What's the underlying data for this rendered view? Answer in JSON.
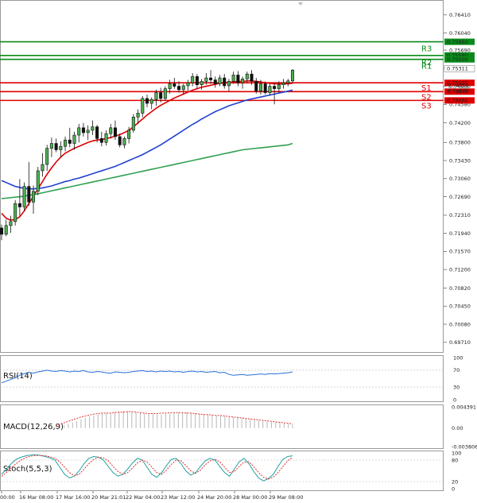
{
  "chart_data": [
    {
      "panel": "price",
      "type": "candlestick",
      "ylim": [
        0.6956,
        0.7665
      ],
      "yticks": [
        "0.76410",
        "0.76040",
        "0.75690",
        "0.75320",
        "0.74950",
        "0.74580",
        "0.74200",
        "0.73800",
        "0.73430",
        "0.73060",
        "0.72690",
        "0.72310",
        "0.71940",
        "0.71570",
        "0.71200",
        "0.70820",
        "0.70450",
        "0.70080",
        "0.69710"
      ],
      "levels": {
        "resistance": [
          {
            "label": "R3",
            "value": 0.7586,
            "text": "0.75860"
          },
          {
            "label": "R2",
            "value": 0.7558,
            "text": "0.75580"
          },
          {
            "label": "R1",
            "value": 0.755,
            "text": "0.75500"
          }
        ],
        "support": [
          {
            "label": "S1",
            "value": 0.7502,
            "text": "0.75020"
          },
          {
            "label": "S2",
            "value": 0.7484,
            "text": "0.74840"
          },
          {
            "label": "S3",
            "value": 0.7466,
            "text": "0.74660"
          }
        ],
        "current": {
          "value": 0.75311,
          "text": "0.75311"
        },
        "partial": [
          "0.74959",
          "0.74800"
        ]
      },
      "candles": [
        [
          0.7205,
          0.7212,
          0.718,
          0.7192
        ],
        [
          0.7192,
          0.7222,
          0.7188,
          0.721
        ],
        [
          0.721,
          0.723,
          0.7195,
          0.7218
        ],
        [
          0.7218,
          0.7262,
          0.721,
          0.7255
        ],
        [
          0.7255,
          0.7305,
          0.723,
          0.7248
        ],
        [
          0.7248,
          0.7298,
          0.724,
          0.729
        ],
        [
          0.729,
          0.734,
          0.725,
          0.7258
        ],
        [
          0.7258,
          0.7292,
          0.7234,
          0.728
        ],
        [
          0.728,
          0.733,
          0.7272,
          0.7322
        ],
        [
          0.7322,
          0.7358,
          0.731,
          0.7335
        ],
        [
          0.7335,
          0.7375,
          0.7322,
          0.7368
        ],
        [
          0.7368,
          0.739,
          0.735,
          0.7378
        ],
        [
          0.7378,
          0.7388,
          0.736,
          0.7365
        ],
        [
          0.7365,
          0.7382,
          0.735,
          0.7372
        ],
        [
          0.7372,
          0.7392,
          0.7362,
          0.7385
        ],
        [
          0.7385,
          0.741,
          0.737,
          0.7378
        ],
        [
          0.7378,
          0.7402,
          0.7365,
          0.7395
        ],
        [
          0.7395,
          0.7418,
          0.738,
          0.741
        ],
        [
          0.741,
          0.742,
          0.7392,
          0.74
        ],
        [
          0.74,
          0.7415,
          0.7385,
          0.7405
        ],
        [
          0.7405,
          0.7425,
          0.7395,
          0.7412
        ],
        [
          0.7412,
          0.7416,
          0.738,
          0.7388
        ],
        [
          0.7388,
          0.7402,
          0.7372,
          0.738
        ],
        [
          0.738,
          0.7405,
          0.7374,
          0.7398
        ],
        [
          0.7398,
          0.7418,
          0.7388,
          0.741
        ],
        [
          0.741,
          0.7425,
          0.7385,
          0.7392
        ],
        [
          0.7392,
          0.7398,
          0.737,
          0.7375
        ],
        [
          0.7375,
          0.7392,
          0.7368,
          0.7388
        ],
        [
          0.7388,
          0.7412,
          0.7378,
          0.7405
        ],
        [
          0.7405,
          0.7438,
          0.74,
          0.7432
        ],
        [
          0.7432,
          0.7448,
          0.7418,
          0.744
        ],
        [
          0.744,
          0.7475,
          0.7432,
          0.747
        ],
        [
          0.747,
          0.7478,
          0.7452,
          0.746
        ],
        [
          0.746,
          0.7472,
          0.7448,
          0.7468
        ],
        [
          0.7468,
          0.7488,
          0.7455,
          0.7482
        ],
        [
          0.7482,
          0.7492,
          0.7462,
          0.747
        ],
        [
          0.747,
          0.7495,
          0.7466,
          0.749
        ],
        [
          0.749,
          0.7508,
          0.748,
          0.75
        ],
        [
          0.75,
          0.7512,
          0.749,
          0.7495
        ],
        [
          0.7495,
          0.7505,
          0.7482,
          0.7488
        ],
        [
          0.7488,
          0.75,
          0.7478,
          0.7496
        ],
        [
          0.7496,
          0.7508,
          0.7486,
          0.7502
        ],
        [
          0.7502,
          0.7522,
          0.7495,
          0.7515
        ],
        [
          0.7515,
          0.752,
          0.749,
          0.7498
        ],
        [
          0.7498,
          0.751,
          0.7488,
          0.7505
        ],
        [
          0.7505,
          0.7522,
          0.7498,
          0.7512
        ],
        [
          0.7512,
          0.7528,
          0.75,
          0.7508
        ],
        [
          0.7508,
          0.7515,
          0.7492,
          0.75
        ],
        [
          0.75,
          0.7518,
          0.7495,
          0.7512
        ],
        [
          0.7512,
          0.752,
          0.749,
          0.7496
        ],
        [
          0.7496,
          0.751,
          0.7485,
          0.7505
        ],
        [
          0.7505,
          0.7525,
          0.75,
          0.7518
        ],
        [
          0.7518,
          0.7526,
          0.7495,
          0.7502
        ],
        [
          0.7502,
          0.7515,
          0.749,
          0.751
        ],
        [
          0.751,
          0.7525,
          0.7502,
          0.752
        ],
        [
          0.752,
          0.7528,
          0.7498,
          0.7505
        ],
        [
          0.7505,
          0.7512,
          0.748,
          0.7485
        ],
        [
          0.7485,
          0.7508,
          0.7478,
          0.75
        ],
        [
          0.75,
          0.7505,
          0.7478,
          0.7482
        ],
        [
          0.7482,
          0.75,
          0.7476,
          0.7495
        ],
        [
          0.7495,
          0.7502,
          0.7458,
          0.749
        ],
        [
          0.749,
          0.7505,
          0.7482,
          0.7498
        ],
        [
          0.7498,
          0.751,
          0.749,
          0.7502
        ],
        [
          0.7502,
          0.751,
          0.7495,
          0.7506
        ],
        [
          0.7506,
          0.753,
          0.7502,
          0.7528
        ]
      ],
      "series": [
        {
          "name": "MA fast",
          "color": "#e00000",
          "values": [
            0.7235,
            0.7225,
            0.7221,
            0.7222,
            0.7228,
            0.724,
            0.7255,
            0.727,
            0.7285,
            0.73,
            0.7315,
            0.7328,
            0.734,
            0.735,
            0.7358,
            0.7363,
            0.7368,
            0.7372,
            0.7376,
            0.738,
            0.7383,
            0.7385,
            0.7386,
            0.7388,
            0.739,
            0.7393,
            0.7396,
            0.74,
            0.7405,
            0.7412,
            0.742,
            0.7428,
            0.7436,
            0.7443,
            0.745,
            0.7456,
            0.7461,
            0.7466,
            0.7471,
            0.7475,
            0.7479,
            0.7483,
            0.7487,
            0.749,
            0.7493,
            0.7495,
            0.7497,
            0.7499,
            0.7501,
            0.7502,
            0.7503,
            0.7504,
            0.7505,
            0.7505,
            0.7506,
            0.7506,
            0.7505,
            0.7504,
            0.7502,
            0.7501,
            0.75,
            0.75,
            0.75,
            0.75,
            0.7501
          ]
        },
        {
          "name": "MA mid",
          "color": "#2040d0",
          "values": [
            0.7302,
            0.7298,
            0.7294,
            0.729,
            0.7288,
            0.7286,
            0.7285,
            0.7285,
            0.7286,
            0.7287,
            0.7289,
            0.7291,
            0.7294,
            0.7297,
            0.73,
            0.7302,
            0.7305,
            0.7307,
            0.731,
            0.7313,
            0.7316,
            0.7319,
            0.7322,
            0.7325,
            0.7328,
            0.7331,
            0.7335,
            0.7339,
            0.7343,
            0.7347,
            0.7351,
            0.7355,
            0.736,
            0.7365,
            0.737,
            0.7375,
            0.7381,
            0.7387,
            0.7393,
            0.7399,
            0.7405,
            0.7411,
            0.7417,
            0.7422,
            0.7428,
            0.7433,
            0.7438,
            0.7443,
            0.7447,
            0.7451,
            0.7455,
            0.7458,
            0.7461,
            0.7464,
            0.7467,
            0.7469,
            0.7471,
            0.7473,
            0.7475,
            0.7477,
            0.7479,
            0.7481,
            0.7483,
            0.7485,
            0.7487
          ]
        },
        {
          "name": "MA slow",
          "color": "#30a050",
          "values": [
            0.7265,
            0.7266,
            0.7267,
            0.7268,
            0.7269,
            0.727,
            0.7272,
            0.7273,
            0.7275,
            0.7277,
            0.7279,
            0.7281,
            0.7283,
            0.7285,
            0.7287,
            0.7289,
            0.7291,
            0.7293,
            0.7295,
            0.7297,
            0.7299,
            0.7301,
            0.7303,
            0.7305,
            0.7307,
            0.7309,
            0.7311,
            0.7313,
            0.7315,
            0.7317,
            0.7319,
            0.7321,
            0.7323,
            0.7325,
            0.7327,
            0.7329,
            0.7331,
            0.7333,
            0.7335,
            0.7337,
            0.7339,
            0.7341,
            0.7343,
            0.7345,
            0.7347,
            0.7349,
            0.7351,
            0.7353,
            0.7355,
            0.7357,
            0.7359,
            0.7361,
            0.7363,
            0.7365,
            0.7366,
            0.7367,
            0.7368,
            0.7369,
            0.737,
            0.7371,
            0.7372,
            0.7373,
            0.7374,
            0.7375,
            0.7378
          ]
        }
      ]
    },
    {
      "panel": "rsi",
      "type": "line",
      "title": "RSI(14)",
      "ylim": [
        0,
        100
      ],
      "yticks": [
        "100",
        "70",
        "30",
        "0"
      ],
      "levels": [
        70,
        30
      ],
      "series": [
        {
          "name": "RSI",
          "color": "#2a6fd6",
          "values": [
            40,
            44,
            48,
            52,
            58,
            62,
            65,
            63,
            66,
            68,
            70,
            68,
            67,
            69,
            68,
            66,
            68,
            67,
            69,
            66,
            65,
            67,
            66,
            64,
            63,
            66,
            65,
            64,
            65,
            67,
            68,
            69,
            67,
            68,
            66,
            68,
            67,
            68,
            66,
            67,
            65,
            67,
            68,
            66,
            67,
            65,
            66,
            67,
            64,
            65,
            60,
            58,
            59,
            60,
            58,
            59,
            60,
            61,
            60,
            62,
            61,
            62,
            63,
            64,
            66
          ]
        }
      ]
    },
    {
      "panel": "macd",
      "type": "bar",
      "title": "MACD(12,26,9)",
      "ylim": [
        -0.003806,
        0.004391
      ],
      "yticks": [
        "0.004391",
        "0.00",
        "-0.003806"
      ],
      "histogram": [
        0.0002,
        0.0004,
        0.0006,
        0.0009,
        0.0012,
        0.0015,
        0.0018,
        0.0021,
        0.0024,
        0.0026,
        0.0028,
        0.003,
        0.0031,
        0.0032,
        0.0033,
        0.0034,
        0.0035,
        0.0035,
        0.0034,
        0.0033,
        0.0032,
        0.0031,
        0.003,
        0.0029,
        0.0028,
        0.0028,
        0.0029,
        0.003,
        0.0031,
        0.0032,
        0.0033,
        0.0033,
        0.0032,
        0.0031,
        0.003,
        0.0029,
        0.0028,
        0.0027,
        0.0026,
        0.0025,
        0.0024,
        0.0023,
        0.0022,
        0.0021,
        0.002,
        0.0019,
        0.0018,
        0.0017,
        0.0016,
        0.0015,
        0.0014,
        0.0013,
        0.0012,
        0.0011,
        0.001,
        0.0009,
        0.0008
      ],
      "signal": [
        0.0005,
        0.0008,
        0.0011,
        0.0014,
        0.0017,
        0.002,
        0.0023,
        0.0025,
        0.0027,
        0.0029,
        0.003,
        0.0031,
        0.0031,
        0.0031,
        0.0032,
        0.0033,
        0.0033,
        0.0034,
        0.0034,
        0.0033,
        0.0032,
        0.0031,
        0.003,
        0.003,
        0.003,
        0.0031,
        0.0031,
        0.0032,
        0.0032,
        0.0032,
        0.0032,
        0.0031,
        0.0031,
        0.003,
        0.0029,
        0.0028,
        0.0028,
        0.0027,
        0.0026,
        0.0026,
        0.0025,
        0.0024,
        0.0023,
        0.0022,
        0.0021,
        0.002,
        0.0019,
        0.0018,
        0.0017,
        0.0016,
        0.0015,
        0.0014,
        0.0013,
        0.0012,
        0.0011,
        0.001,
        0.0009
      ]
    },
    {
      "panel": "stoch",
      "type": "line",
      "title": "Stoch(5,5,3)",
      "ylim": [
        0,
        100
      ],
      "yticks": [
        "100",
        "80",
        "20",
        "0"
      ],
      "levels": [
        80,
        20
      ],
      "series": [
        {
          "name": "%K",
          "color": "#20a0a0",
          "values": [
            40,
            55,
            70,
            82,
            88,
            92,
            94,
            95,
            93,
            90,
            86,
            80,
            60,
            40,
            30,
            35,
            50,
            70,
            85,
            90,
            88,
            80,
            62,
            45,
            35,
            40,
            55,
            72,
            85,
            80,
            60,
            40,
            32,
            45,
            65,
            82,
            85,
            70,
            50,
            38,
            45,
            62,
            78,
            85,
            80,
            62,
            45,
            35,
            55,
            75,
            85,
            70,
            48,
            30,
            22,
            28,
            40,
            62,
            82,
            90,
            92
          ]
        },
        {
          "name": "%D",
          "color": "#e03030",
          "values": [
            35,
            45,
            58,
            70,
            80,
            87,
            91,
            93,
            93,
            92,
            89,
            85,
            75,
            60,
            45,
            36,
            40,
            55,
            70,
            82,
            88,
            86,
            78,
            62,
            48,
            40,
            45,
            58,
            72,
            80,
            75,
            60,
            45,
            40,
            52,
            68,
            80,
            78,
            65,
            50,
            43,
            52,
            67,
            78,
            82,
            75,
            60,
            45,
            48,
            62,
            75,
            75,
            62,
            45,
            32,
            27,
            32,
            45,
            62,
            78,
            88
          ]
        }
      ]
    },
    {
      "panel": "xaxis",
      "type": "axis",
      "xticks": [
        "00:00",
        "16 Mar 08:00",
        "17 Mar 16:00",
        "20 Mar 21:01",
        "22 Mar 04:00",
        "23 Mar 12:00",
        "24 Mar 20:00",
        "28 Mar 00:00",
        "29 Mar 08:00"
      ]
    }
  ]
}
